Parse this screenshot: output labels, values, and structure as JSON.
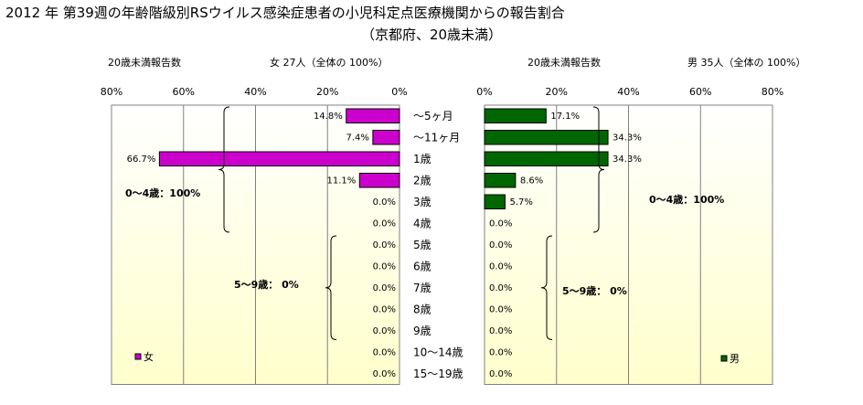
{
  "title": "2012 年 第39週の年齢階級別RSウイルス感染症患者の小児科定点医療機関からの報告割合",
  "subtitle": "（京都府、20歳未満）",
  "colors": {
    "female": "#cc00cc",
    "male": "#006600",
    "bg_top": "#ffffff",
    "bg_bottom": "#ffffcc"
  },
  "chart_data": [
    {
      "type": "bar",
      "orientation": "horizontal",
      "direction": "right-to-left",
      "header_left": "20歳未満報告数",
      "header_right": "女 27人（全体の 100%）",
      "legend": "女",
      "legend_position": "bottom-left",
      "xlim": [
        0,
        80
      ],
      "ticks": [
        "80%",
        "60%",
        "40%",
        "20%",
        "0%"
      ],
      "grid": true,
      "categories": [
        "～5ヶ月",
        "～11ヶ月",
        "1歳",
        "2歳",
        "3歳",
        "4歳",
        "5歳",
        "6歳",
        "7歳",
        "8歳",
        "9歳",
        "10～14歳",
        "15～19歳"
      ],
      "values": [
        14.8,
        7.4,
        66.7,
        11.1,
        0.0,
        0.0,
        0.0,
        0.0,
        0.0,
        0.0,
        0.0,
        0.0,
        0.0
      ],
      "labels": [
        "14.8%",
        "7.4%",
        "66.7%",
        "11.1%",
        "0.0%",
        "0.0%",
        "0.0%",
        "0.0%",
        "0.0%",
        "0.0%",
        "0.0%",
        "0.0%",
        "0.0%"
      ],
      "annotations": [
        "0～4歳：100%",
        "5～9歳： 0%"
      ]
    },
    {
      "type": "bar",
      "orientation": "horizontal",
      "direction": "left-to-right",
      "header_left": "20歳未満報告数",
      "header_right": "男 35人（全体の 100%）",
      "legend": "男",
      "legend_position": "bottom-right",
      "xlim": [
        0,
        80
      ],
      "ticks": [
        "0%",
        "20%",
        "40%",
        "60%",
        "80%"
      ],
      "grid": true,
      "categories": [
        "～5ヶ月",
        "～11ヶ月",
        "1歳",
        "2歳",
        "3歳",
        "4歳",
        "5歳",
        "6歳",
        "7歳",
        "8歳",
        "9歳",
        "10～14歳",
        "15～19歳"
      ],
      "values": [
        17.1,
        34.3,
        34.3,
        8.6,
        5.7,
        0.0,
        0.0,
        0.0,
        0.0,
        0.0,
        0.0,
        0.0,
        0.0
      ],
      "labels": [
        "17.1%",
        "34.3%",
        "34.3%",
        "8.6%",
        "5.7%",
        "0.0%",
        "0.0%",
        "0.0%",
        "0.0%",
        "0.0%",
        "0.0%",
        "0.0%",
        "0.0%"
      ],
      "annotations": [
        "0～4歳：100%",
        "5～9歳： 0%"
      ]
    }
  ]
}
